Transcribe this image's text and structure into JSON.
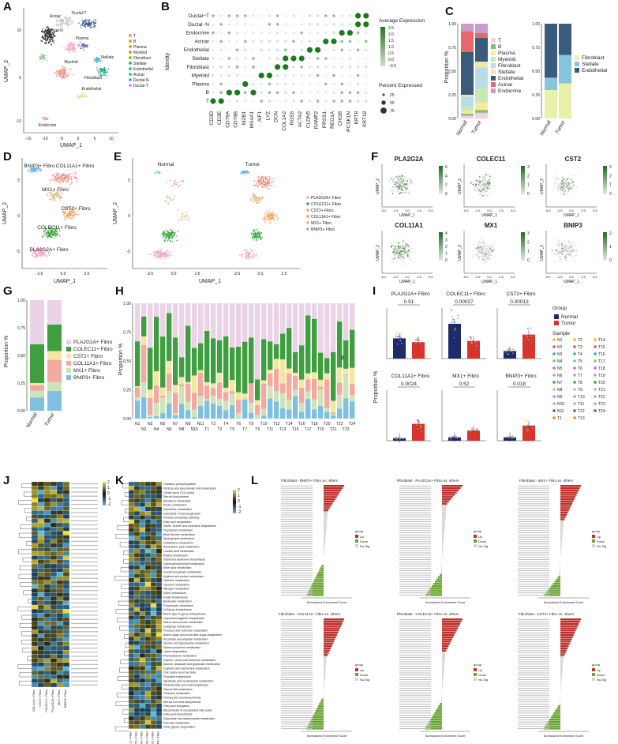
{
  "panel_labels": [
    "A",
    "B",
    "C",
    "D",
    "E",
    "F",
    "G",
    "H",
    "I",
    "J",
    "K",
    "L"
  ],
  "panelA": {
    "xlabel": "UMAP_1",
    "ylabel": "UMAP_2",
    "xticks": [
      "-15",
      "-10",
      "-5",
      "0",
      "5",
      "10"
    ],
    "yticks": [
      "10",
      "0",
      "-10"
    ],
    "legend": [
      "T",
      "B",
      "Plasma",
      "Myeloid",
      "Fibroblast",
      "Stellate",
      "Endothelial",
      "Acinar",
      "Ductal-N",
      "Ductal-T"
    ],
    "legend_colors": [
      "#f8766d",
      "#e58700",
      "#c99800",
      "#a3a500",
      "#6bb100",
      "#00ba38",
      "#00bf7d",
      "#00c0af",
      "#00bcd8",
      "#b983ff"
    ],
    "cluster_labels": [
      "Acinar",
      "Ductal-T",
      "Ductal-N",
      "Plasma",
      "Myeloid",
      "Stellate",
      "Fibroblast",
      "Endothelial",
      "Endocrine"
    ]
  },
  "panelB": {
    "ylabel": "Identity",
    "rows": [
      "Ductal−T",
      "Ductal−N",
      "Endocrine",
      "Acinar",
      "Endothelial",
      "Stellate",
      "Fibroblast",
      "Myeloid",
      "Plasma",
      "B",
      "T"
    ],
    "genes": [
      "CD3D",
      "CD3E",
      "CD79A",
      "CD79B",
      "MZB1",
      "MS4A1",
      "AIF1",
      "LYZ",
      "DCN",
      "COL1A2",
      "RGS5",
      "ACTA2",
      "CLDN5",
      "RAMP2",
      "PRSS1",
      "REG1A",
      "CHGB",
      "PCSK1N",
      "KRT8",
      "KRT19"
    ],
    "legend_expr_title": "Average Expression",
    "legend_expr_ticks": [
      "2.5",
      "2.0",
      "1.5",
      "1.0",
      "0.5",
      "0.0",
      "−0.5"
    ],
    "legend_pct_title": "Percent Expressed",
    "legend_pct_ticks": [
      "25",
      "50",
      "75"
    ],
    "color_high": "#1b7a1b",
    "color_low": "#d9d9d9"
  },
  "panelC": {
    "ylabel": "Proportion %",
    "yticks": [
      "0.00",
      "0.25",
      "0.50",
      "0.75",
      "1.00"
    ],
    "left": {
      "categories": [
        "Normal",
        "Tumor"
      ],
      "legend": [
        "T",
        "B",
        "Plasma",
        "Myeloid",
        "Fibroblast",
        "Stellate",
        "Endothelial",
        "Acinar",
        "Endocrine"
      ],
      "colors": [
        "#f4cfe0",
        "#7fbf7b",
        "#ffe89a",
        "#c7e9b4",
        "#b7dde8",
        "#f1e9a0",
        "#3b5b7a",
        "#e8676a",
        "#c99bcf"
      ],
      "values": {
        "Normal": [
          0.03,
          0.02,
          0.03,
          0.05,
          0.1,
          0.02,
          0.45,
          0.22,
          0.08
        ],
        "Tumor": [
          0.06,
          0.03,
          0.08,
          0.15,
          0.22,
          0.06,
          0.25,
          0.05,
          0.1
        ]
      }
    },
    "right": {
      "categories": [
        "Normal",
        "Tumor"
      ],
      "legend": [
        "Fibroblast",
        "Stellate",
        "Endothelial"
      ],
      "colors": [
        "#e9f0a8",
        "#87c5de",
        "#3b5b7a"
      ],
      "values": {
        "Normal": [
          0.3,
          0.13,
          0.57
        ],
        "Tumor": [
          0.37,
          0.3,
          0.33
        ]
      }
    }
  },
  "panelD": {
    "xlabel": "UMAP_1",
    "ylabel": "UMAP_2",
    "xticks": [
      "-2.5",
      "0.0",
      "2.5"
    ],
    "yticks": [
      "5",
      "0",
      "-5"
    ],
    "cluster_labels": [
      "BNIP3+ Fibro",
      "COL11A1+ Fibro",
      "MX1+ Fibro",
      "CST2+ Fibro",
      "COLEC11+ Fibro",
      "PLA2G2A+ Fibro"
    ]
  },
  "panelE": {
    "xlabel": "UMAP_1",
    "ylabel": "UMAP_2",
    "xticks": [
      "-2.5",
      "0.0",
      "2.5"
    ],
    "yticks": [
      "5",
      "0",
      "-5"
    ],
    "facet_titles": [
      "Normal",
      "Tumor"
    ],
    "legend": [
      "PLA2G2A+ Fibro",
      "COLEC11+ Fibro",
      "CST2+ Fibro",
      "COL11A1+ Fibro",
      "MX1+ Fibro",
      "BNIP3+ Fibro"
    ],
    "colors": [
      "#f2a3c9",
      "#3aa83a",
      "#f7a35c",
      "#f08a7a",
      "#d9b67c",
      "#6fb8d6"
    ]
  },
  "panelF": {
    "genes": [
      "PLA2G2A",
      "COLEC11",
      "CST2",
      "COL11A1",
      "MX1",
      "BNIP3"
    ],
    "xlabel": "UMAP_1",
    "ylabel": "UMAP_2",
    "xticks": [
      "-5.0",
      "-2.5",
      "0.0",
      "2.5",
      "5.0"
    ],
    "scale_ticks": [
      [
        "6",
        "4",
        "2",
        "0"
      ],
      [
        "3",
        "2",
        "1",
        "0"
      ],
      [
        "3",
        "2",
        "1",
        "0"
      ],
      [
        "4",
        "3",
        "2",
        "1",
        "0"
      ],
      [
        "3",
        "2",
        "1",
        "0"
      ],
      [
        "2",
        "1",
        "0"
      ]
    ]
  },
  "panelG": {
    "ylabel": "Proportion %",
    "yticks": [
      "0.00",
      "0.25",
      "0.50",
      "0.75",
      "1.00"
    ],
    "categories": [
      "Normal",
      "Tumor"
    ],
    "legend": [
      "PLA2G2A+ Fibro",
      "COLEC11+ Fibro",
      "CST2+ Fibro",
      "COL11A1+ Fibro",
      "MX1+ Fibro",
      "BNIP3+ Fibro"
    ],
    "colors": [
      "#ead3e6",
      "#3f9e3f",
      "#f2e6a0",
      "#f4a9a0",
      "#cfe3b8",
      "#7fbfe0"
    ],
    "values": {
      "Normal": [
        0.4,
        0.35,
        0.02,
        0.05,
        0.06,
        0.12
      ],
      "Tumor": [
        0.22,
        0.24,
        0.08,
        0.2,
        0.08,
        0.18
      ]
    }
  },
  "panelH": {
    "ylabel": "Proportion %",
    "yticks": [
      "0.00",
      "0.25",
      "0.50",
      "0.75",
      "1.00"
    ],
    "samples": [
      "N1",
      "N2",
      "N3",
      "N4",
      "N5",
      "N6",
      "N7",
      "N8",
      "N9",
      "N10",
      "N11",
      "T1",
      "T2",
      "T3",
      "T4",
      "T5",
      "T6",
      "T7",
      "T8",
      "T9",
      "T10",
      "T11",
      "T12",
      "T13",
      "T14",
      "T15",
      "T16",
      "T17",
      "T18",
      "T19",
      "T20",
      "T21",
      "T22",
      "T23",
      "T24"
    ],
    "colors": [
      "#ead3e6",
      "#3f9e3f",
      "#f2e6a0",
      "#f4a9a0",
      "#cfe3b8",
      "#7fbfe0"
    ],
    "annotation": "E"
  },
  "panelI": {
    "ylabel": "Proportion %",
    "subplots": [
      {
        "title": "PLA2G2A+ Fibro",
        "p": "0.51",
        "normal": 0.32,
        "tumor": 0.26,
        "ymax": 0.8
      },
      {
        "title": "COLEC11+ Fibro",
        "p": "0.00027",
        "normal": 0.55,
        "tumor": 0.28,
        "ymax": 0.8
      },
      {
        "title": "CST2+ Fibro",
        "p": "0.00013",
        "normal": 0.06,
        "tumor": 0.19,
        "ymax": 0.4
      },
      {
        "title": "COL11A1+ Fibro",
        "p": "0.0024",
        "normal": 0.03,
        "tumor": 0.2,
        "ymax": 0.6
      },
      {
        "title": "MX1+ Fibro",
        "p": "0.52",
        "normal": 0.02,
        "tumor": 0.06,
        "ymax": 0.3
      },
      {
        "title": "BNIP3+ Fibro",
        "p": "0.018",
        "normal": 0.02,
        "tumor": 0.09,
        "ymax": 0.3
      }
    ],
    "group_title": "Group",
    "groups": [
      "Normal",
      "Tumor"
    ],
    "group_colors": [
      "#1f2a6b",
      "#d9342b"
    ],
    "sample_title": "Sample",
    "samples": [
      "N1",
      "N2",
      "N3",
      "N4",
      "N5",
      "N6",
      "N7",
      "N8",
      "N9",
      "N10",
      "N11",
      "T1",
      "T2",
      "T3",
      "T4",
      "T5",
      "T6",
      "T7",
      "T8",
      "T9",
      "T10",
      "T11",
      "T12",
      "T13",
      "T14",
      "T15",
      "T16",
      "T17",
      "T18",
      "T19",
      "T20",
      "T21",
      "T22",
      "T23",
      "T24"
    ]
  },
  "panelJ": {
    "columns": [
      "COL11A1+ Fibro",
      "CST2+ Fibro",
      "COLEC11+ Fibro",
      "PLA2G2A+ Fibro",
      "MX1+ Fibro",
      "BNIP3+ Fibro"
    ],
    "scale_ticks": [
      "2",
      "1",
      "0",
      "-1",
      "-2"
    ]
  },
  "panelK": {
    "columns": [
      "COLEC11+ Fibro",
      "CST2+ Fibro",
      "COL11A1+ Fibro",
      "PLA2G2A+ Fibro",
      "MX1+ Fibro",
      "BNIP3+ Fibro"
    ],
    "scale_ticks": [
      "2",
      "1",
      "0",
      "-1",
      "-2"
    ],
    "rows": [
      "Oxidative phosphorylation",
      "Pentose and glucuronate interconversions",
      "Citrate cycle (TCA cycle)",
      "Steroid biosynthesis",
      "Riboflavin metabolism",
      "Purine metabolism",
      "Pyrimidine metabolism",
      "Glycolysis / Gluconeogenesis",
      "Pentose phosphate pathway",
      "Fatty acid degradation",
      "Valine, leucine and isoleucine degradation",
      "Tryptophan metabolism",
      "Beta-Alanine metabolism",
      "Sphingolipid metabolism",
      "Glutathione metabolism",
      "Arachidonic acid metabolism",
      "Linoleic acid metabolism",
      "Retinol metabolism",
      "Terpenoid backbone biosynthesis",
      "Glycerophospholipid metabolism",
      "Ether lipid metabolism",
      "Inositol phosphate metabolism",
      "Arginine and proline metabolism",
      "Histidine metabolism",
      "Tyrosine metabolism",
      "Nitrogen metabolism",
      "Sulfur metabolism",
      "Folate biosynthesis",
      "Butanoate metabolism",
      "Propanoate metabolism",
      "N-Glycan biosynthesis",
      "Mucin type O-glycan biosynthesis",
      "Glycosaminoglycan biosynthesis",
      "Starch and sucrose metabolism",
      "Galactose metabolism",
      "Fructose and mannose metabolism",
      "Amino sugar and nucleotide sugar metabolism",
      "Ascorbate and aldarate metabolism",
      "Taurine and hypotaurine metabolism",
      "Selenocompound metabolism",
      "Lysine degradation",
      "Phenylalanine metabolism",
      "Glycine, serine and threonine metabolism",
      "Alanine, aspartate and glutamate metabolism",
      "Cysteine and methionine metabolism",
      "One carbon pool by folate",
      "Porphyrin metabolism",
      "Nicotinate and nicotinamide metabolism",
      "Pantothenate and CoA biosynthesis",
      "Vitamin B6 metabolism",
      "Thiamine metabolism",
      "Primary bile acid biosynthesis",
      "Steroid hormone biosynthesis",
      "Fatty acid elongation",
      "Biosynthesis of unsaturated fatty acids",
      "Fatty acid biosynthesis",
      "Glyoxylate and dicarboxylate metabolism",
      "Pyruvate metabolism",
      "Other glycan degradation"
    ]
  },
  "panelL": {
    "titles": [
      "Fibroblast - BNIP3+ Fibro vs. others",
      "Fibroblast - PLA2G2A+ Fibro vs. others",
      "Fibroblast - MX1+ Fibro vs. others",
      "Fibroblast - COL11A1+ Fibro vs. others",
      "Fibroblast - COLEC11+ Fibro vs. others",
      "Fibroblast - CST2+ Fibro vs. others"
    ],
    "xlabel": "Normalized Enrichment Score",
    "legend_title": "group",
    "legend": [
      "Up",
      "Down",
      "No-Sig"
    ],
    "colors": [
      "#c0302b",
      "#6aa534",
      "#d3d3d3"
    ]
  }
}
